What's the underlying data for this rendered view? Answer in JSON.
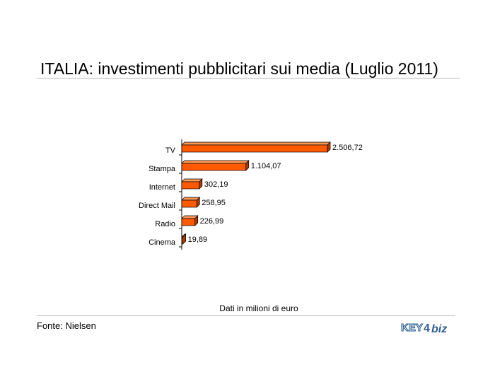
{
  "title": "ITALIA: investimenti pubblicitari sui media (Luglio 2011)",
  "note": "Dati in milioni di euro",
  "source": "Fonte: Nielsen",
  "logo": {
    "text_left": "KEY",
    "text_digit": "4",
    "text_right": "biz"
  },
  "colors": {
    "bar_front": "#ff5a00",
    "bar_top": "#ff9a55",
    "bar_side": "#a83c00",
    "bar_edge": "#000000"
  },
  "chart_data": {
    "type": "bar",
    "orientation": "horizontal",
    "categories": [
      "TV",
      "Stampa",
      "Internet",
      "Direct Mail",
      "Radio",
      "Cinema"
    ],
    "values": [
      2506.72,
      1104.07,
      302.19,
      258.95,
      226.99,
      19.89
    ],
    "value_labels": [
      "2.506,72",
      "1.104,07",
      "302,19",
      "258,95",
      "226,99",
      "19,89"
    ],
    "title": "ITALIA: investimenti pubblicitari sui media (Luglio 2011)",
    "xlabel": "Dati in milioni di euro",
    "ylabel": "",
    "xlim": [
      0,
      2506.72
    ],
    "grid": false,
    "legend": "none"
  }
}
